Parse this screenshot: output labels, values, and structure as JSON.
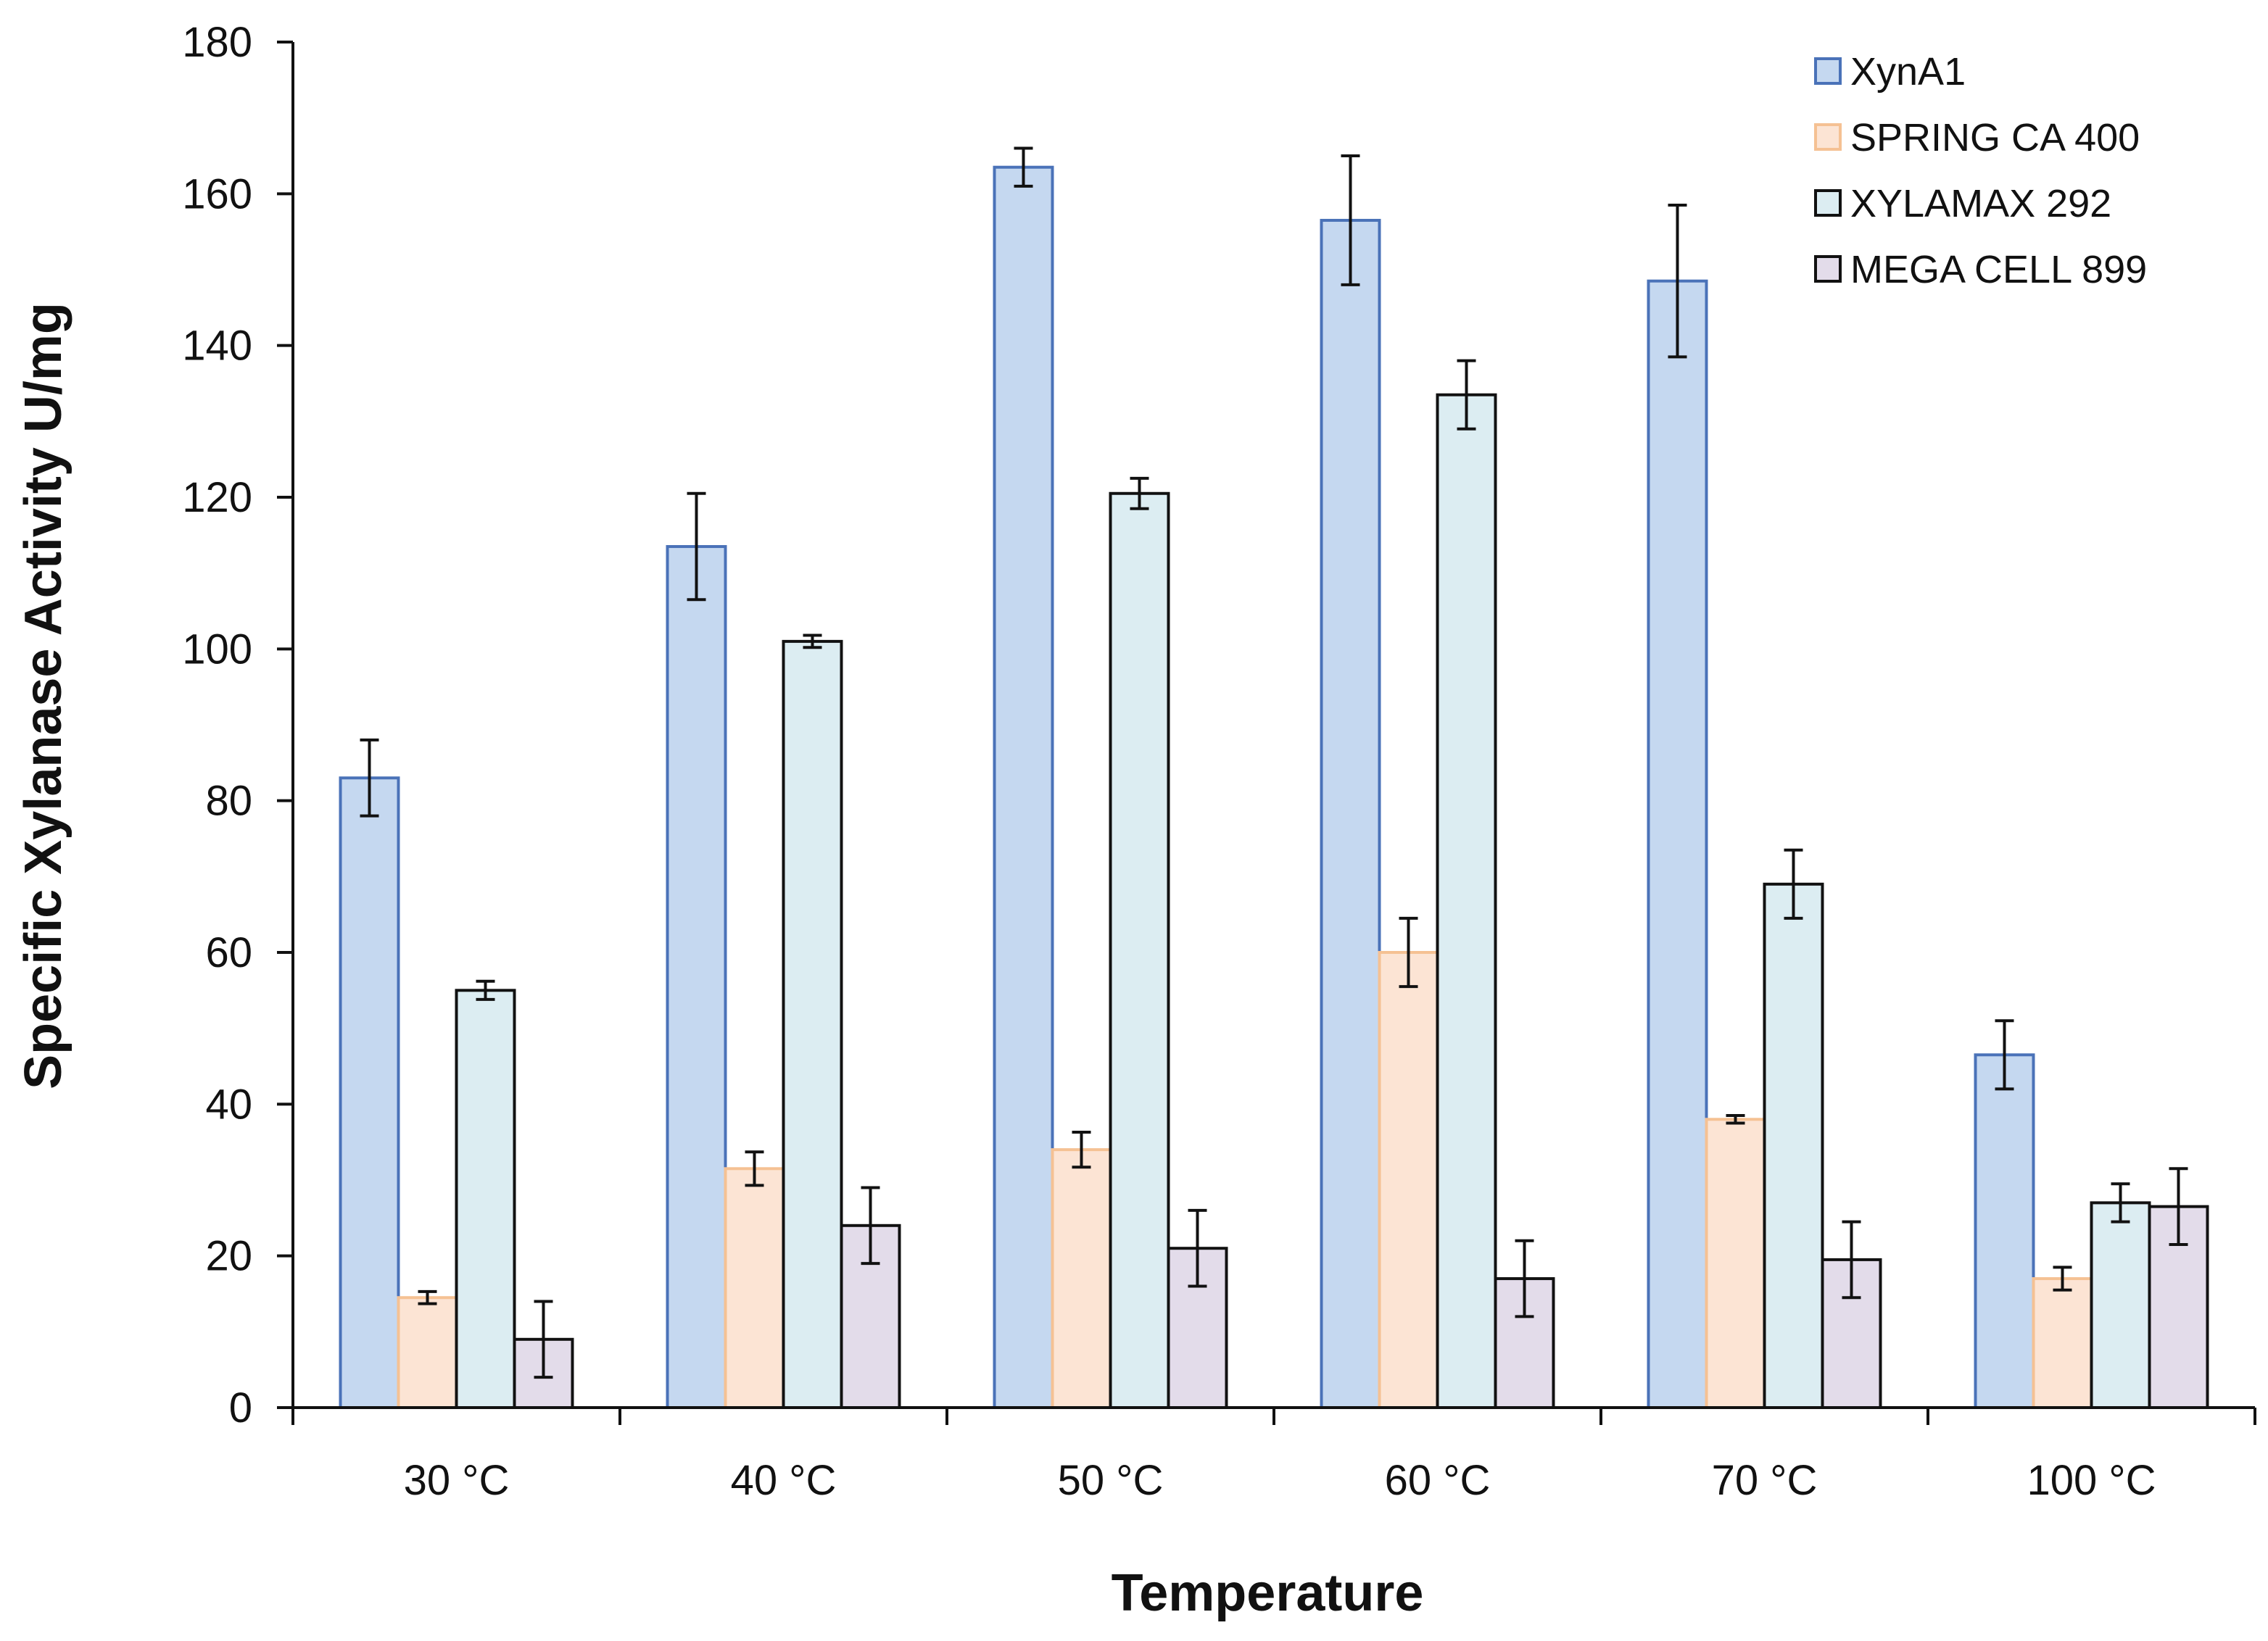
{
  "chart_data": {
    "type": "bar",
    "title": "",
    "xlabel": "Temperature",
    "ylabel": "Specific Xylanase Activity U/mg",
    "ylim": [
      0,
      180
    ],
    "yticks": [
      0,
      20,
      40,
      60,
      80,
      100,
      120,
      140,
      160,
      180
    ],
    "grid": false,
    "legend_position": "top-right",
    "categories": [
      "30 °C",
      "40 °C",
      "50 °C",
      "60 °C",
      "70 °C",
      "100 °C"
    ],
    "series": [
      {
        "name": "XynA1",
        "fill": "#c5d8f0",
        "stroke": "#4a72b8",
        "values": [
          83,
          113.5,
          163.5,
          156.5,
          148.5,
          46.5
        ],
        "errors": [
          5,
          7,
          2.5,
          8.5,
          10,
          4.5
        ]
      },
      {
        "name": "SPRING CA 400",
        "fill": "#fce4d4",
        "stroke": "#f5c193",
        "values": [
          14.5,
          31.5,
          34,
          60,
          38,
          17
        ],
        "errors": [
          0.8,
          2.2,
          2.3,
          4.5,
          0.5,
          1.5
        ]
      },
      {
        "name": "XYLAMAX 292",
        "fill": "#dcedf2",
        "stroke": "#111111",
        "values": [
          55,
          101,
          120.5,
          133.5,
          69,
          27
        ],
        "errors": [
          1.2,
          0.8,
          2,
          4.5,
          4.5,
          2.5
        ]
      },
      {
        "name": "MEGA CELL 899",
        "fill": "#e3dcea",
        "stroke": "#111111",
        "values": [
          9,
          24,
          21,
          17,
          19.5,
          26.5
        ],
        "errors": [
          5,
          5,
          5,
          5,
          5,
          5
        ]
      }
    ]
  }
}
